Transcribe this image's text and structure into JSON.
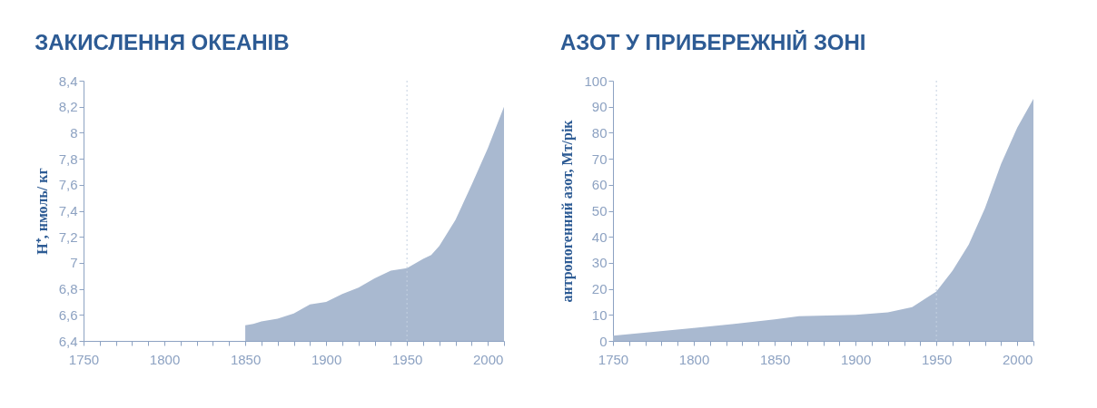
{
  "chart_data": [
    {
      "type": "area",
      "title": "ЗАКИСЛЕННЯ ОКЕАНІВ",
      "ylabel": "H⁺, нмоль/ кг",
      "x": [
        1850,
        1855,
        1860,
        1870,
        1880,
        1890,
        1900,
        1910,
        1920,
        1930,
        1940,
        1950,
        1960,
        1965,
        1970,
        1980,
        1990,
        2000,
        2010
      ],
      "series": [
        {
          "color": "#a9b9d0",
          "values": [
            6.52,
            6.53,
            6.55,
            6.57,
            6.61,
            6.68,
            6.7,
            6.76,
            6.81,
            6.88,
            6.94,
            6.96,
            7.03,
            7.06,
            7.13,
            7.33,
            7.6,
            7.88,
            8.2
          ]
        }
      ],
      "xlim": [
        1750,
        2010
      ],
      "ylim": [
        6.4,
        8.4
      ],
      "xticks": [
        1750,
        {
          "value": 1760,
          "label": null
        },
        {
          "value": 1770,
          "label": null
        },
        {
          "value": 1780,
          "label": null
        },
        {
          "value": 1790,
          "label": null
        },
        1800,
        {
          "value": 1810,
          "label": null
        },
        {
          "value": 1820,
          "label": null
        },
        {
          "value": 1830,
          "label": null
        },
        {
          "value": 1840,
          "label": null
        },
        1850,
        {
          "value": 1860,
          "label": null
        },
        {
          "value": 1870,
          "label": null
        },
        {
          "value": 1880,
          "label": null
        },
        {
          "value": 1890,
          "label": null
        },
        1900,
        {
          "value": 1910,
          "label": null
        },
        {
          "value": 1920,
          "label": null
        },
        {
          "value": 1930,
          "label": null
        },
        {
          "value": 1940,
          "label": null
        },
        1950,
        {
          "value": 1960,
          "label": null
        },
        {
          "value": 1970,
          "label": null
        },
        {
          "value": 1980,
          "label": null
        },
        {
          "value": 1990,
          "label": null
        },
        2000,
        {
          "value": 2010,
          "label": null
        }
      ],
      "yticks": [
        {
          "value": 6.4,
          "label": "6,4"
        },
        {
          "value": 6.6,
          "label": "6,6"
        },
        {
          "value": 6.8,
          "label": "6,8"
        },
        7,
        {
          "value": 7.2,
          "label": "7,2"
        },
        {
          "value": 7.4,
          "label": "7,4"
        },
        {
          "value": 7.6,
          "label": "7,6"
        },
        {
          "value": 7.8,
          "label": "7,8"
        },
        8,
        {
          "value": 8.2,
          "label": "8,2"
        },
        {
          "value": 8.4,
          "label": "8,4"
        }
      ],
      "ref_lines": [
        {
          "axis": "x",
          "value": 1950,
          "color": "#c5d0e0",
          "line_style": "dotted"
        }
      ],
      "grid": false
    },
    {
      "type": "area",
      "title": "АЗОТ У ПРИБЕРЕЖНІЙ ЗОНІ",
      "ylabel": "антропогенний азот, Мт/рік",
      "x": [
        1750,
        1775,
        1800,
        1825,
        1850,
        1865,
        1900,
        1920,
        1935,
        1950,
        1960,
        1970,
        1980,
        1990,
        2000,
        2010
      ],
      "series": [
        {
          "color": "#a9b9d0",
          "values": [
            2,
            3.5,
            5,
            6.5,
            8.3,
            9.5,
            10,
            11,
            13,
            19,
            27,
            37,
            51,
            68,
            82,
            93
          ]
        }
      ],
      "xlim": [
        1750,
        2010
      ],
      "ylim": [
        0,
        100
      ],
      "xticks": [
        1750,
        {
          "value": 1760,
          "label": null
        },
        {
          "value": 1770,
          "label": null
        },
        {
          "value": 1780,
          "label": null
        },
        {
          "value": 1790,
          "label": null
        },
        1800,
        {
          "value": 1810,
          "label": null
        },
        {
          "value": 1820,
          "label": null
        },
        {
          "value": 1830,
          "label": null
        },
        {
          "value": 1840,
          "label": null
        },
        1850,
        {
          "value": 1860,
          "label": null
        },
        {
          "value": 1870,
          "label": null
        },
        {
          "value": 1880,
          "label": null
        },
        {
          "value": 1890,
          "label": null
        },
        1900,
        {
          "value": 1910,
          "label": null
        },
        {
          "value": 1920,
          "label": null
        },
        {
          "value": 1930,
          "label": null
        },
        {
          "value": 1940,
          "label": null
        },
        1950,
        {
          "value": 1960,
          "label": null
        },
        {
          "value": 1970,
          "label": null
        },
        {
          "value": 1980,
          "label": null
        },
        {
          "value": 1990,
          "label": null
        },
        2000,
        {
          "value": 2010,
          "label": null
        }
      ],
      "yticks": [
        0,
        10,
        20,
        30,
        40,
        50,
        60,
        70,
        80,
        90,
        100
      ],
      "ref_lines": [
        {
          "axis": "x",
          "value": 1950,
          "color": "#c5d0e0",
          "line_style": "dotted"
        }
      ],
      "grid": false
    }
  ]
}
